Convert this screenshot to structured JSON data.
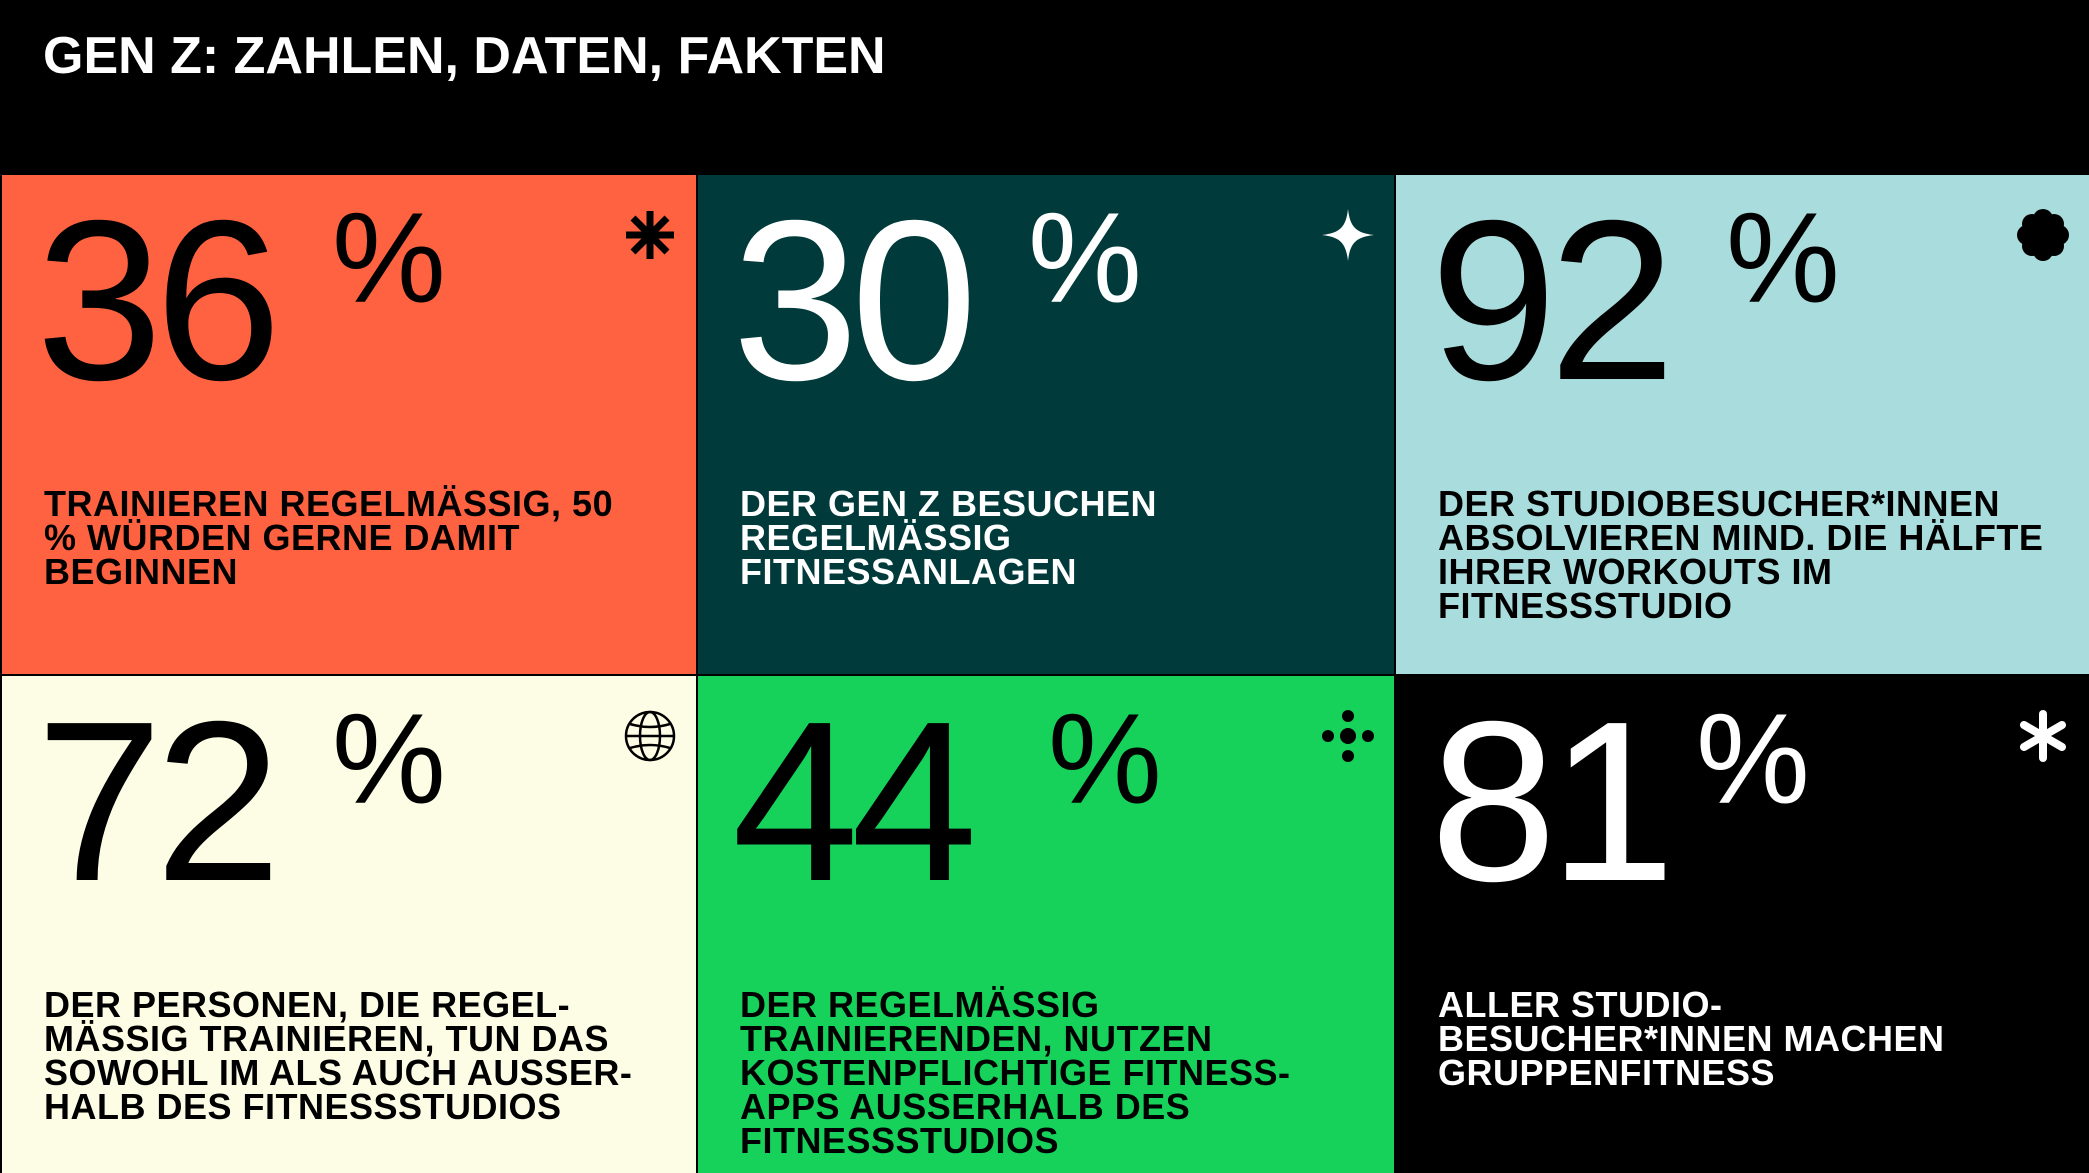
{
  "header": {
    "title": "GEN Z: ZAHLEN, DATEN, FAKTEN"
  },
  "cards": [
    {
      "value": "36",
      "unit": "%",
      "text": "TRAINIEREN REGELMÄSSIG, 50 % WÜRDEN GERNE DAMIT BEGINNEN",
      "icon": "asterisk-icon",
      "bg": "#ff6240"
    },
    {
      "value": "30",
      "unit": "%",
      "text": "DER GEN Z BESUCHEN REGELMÄSSIG FITNESSANLAGEN",
      "icon": "sparkle-icon",
      "bg": "#003a3a"
    },
    {
      "value": "92",
      "unit": "%",
      "text": "DER STUDIOBESUCHER*INNEN ABSOLVIEREN MIND. DIE HÄLFTE IHRER WORKOUTS IM FITNESSSTUDIO",
      "icon": "flower-icon",
      "bg": "#a9dcdc"
    },
    {
      "value": "72",
      "unit": "%",
      "text": "DER PERSONEN, DIE REGEL-MÄSSIG TRAINIEREN, TUN DAS SOWOHL IM ALS AUCH AUSSER-HALB DES FITNESSSTUDIOS",
      "icon": "globe-icon",
      "bg": "#fdfde6"
    },
    {
      "value": "44",
      "unit": "%",
      "text": "DER REGELMÄSSIG TRAINIERENDEN, NUTZEN KOSTENPFLICHTIGE FITNESS-APPS AUSSERHALB DES FITNESSSTUDIOS",
      "icon": "dots-cross-icon",
      "bg": "#16d25b"
    },
    {
      "value": "81",
      "unit": "%",
      "text": "ALLER STUDIO-BESUCHER*INNEN MACHEN GRUPPENFITNESS",
      "icon": "asterisk-round-icon",
      "bg": "#000000"
    }
  ]
}
